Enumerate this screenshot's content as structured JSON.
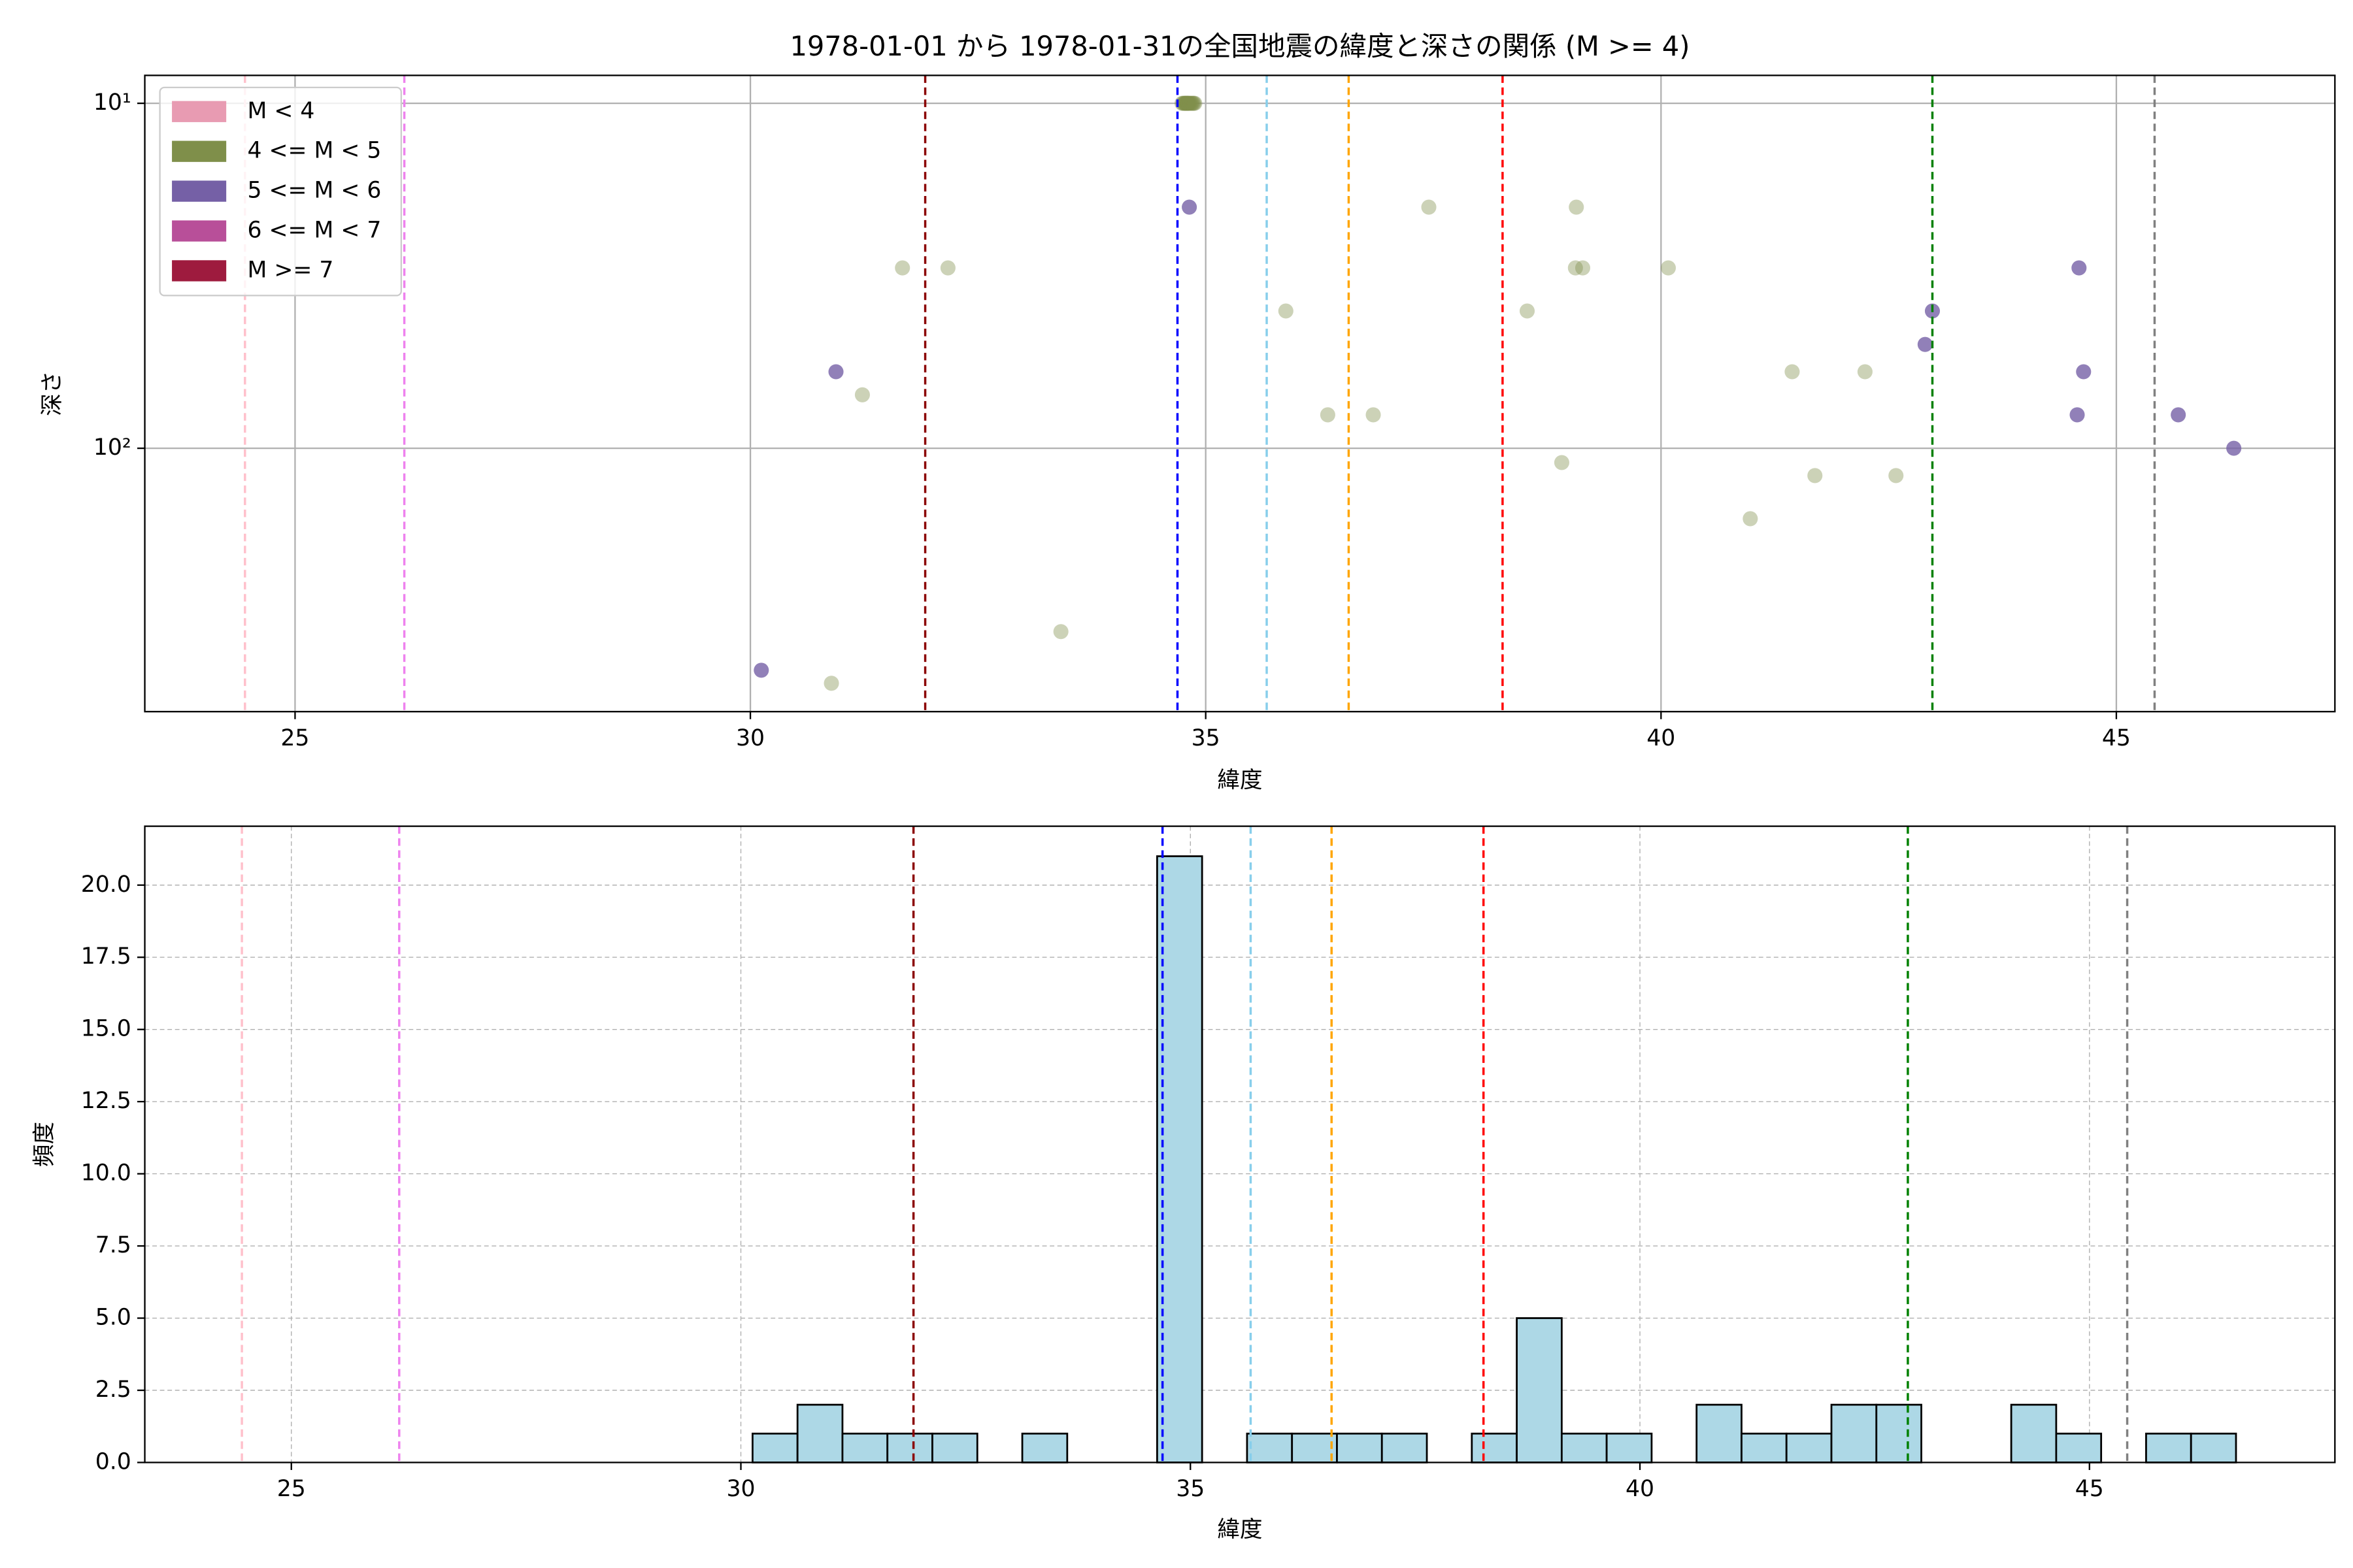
{
  "chart_data": [
    {
      "type": "scatter",
      "title": "1978-01-01 から 1978-01-31の全国地震の緯度と深さの関係 (M >= 4)",
      "xlabel": "緯度",
      "ylabel": "深さ",
      "xlim": [
        23.35,
        47.4
      ],
      "xticks": [
        25,
        30,
        35,
        40,
        45
      ],
      "ylim": [
        580,
        8.3
      ],
      "yscale": "log",
      "yticks": [
        {
          "value": 10,
          "label": "10¹"
        },
        {
          "value": 100,
          "label": "10²"
        }
      ],
      "grid": true,
      "grid_style": "solid",
      "legend": "upper left",
      "vlines": [
        {
          "value": 24.45,
          "color": "pink"
        },
        {
          "value": 26.2,
          "color": "violet"
        },
        {
          "value": 31.92,
          "color": "darkred"
        },
        {
          "value": 34.69,
          "color": "blue"
        },
        {
          "value": 35.67,
          "color": "skyblue"
        },
        {
          "value": 36.57,
          "color": "orange"
        },
        {
          "value": 38.26,
          "color": "red"
        },
        {
          "value": 42.98,
          "color": "green"
        },
        {
          "value": 45.42,
          "color": "gray"
        }
      ],
      "series": [
        {
          "name": "M < 4",
          "color": "#e89bb2",
          "x": [],
          "y": []
        },
        {
          "name": "4 <= M < 5",
          "color": "#7f8f4a",
          "x": [
            31.67,
            32.17,
            31.23,
            30.89,
            33.41,
            35.88,
            36.34,
            36.84,
            37.45,
            38.53,
            38.91,
            39.07,
            39.06,
            39.14,
            40.08,
            40.98,
            41.44,
            41.69,
            42.24,
            42.58,
            34.74,
            34.75,
            34.76,
            34.77,
            34.77,
            34.78,
            34.78,
            34.79,
            34.79,
            34.8,
            34.8,
            34.81,
            34.81,
            34.82,
            34.83,
            34.84,
            34.85,
            34.86,
            34.87,
            34.88
          ],
          "y": [
            30,
            30,
            70,
            480,
            340,
            40,
            80,
            80,
            20,
            40,
            110,
            20,
            30,
            30,
            30,
            160,
            60,
            120,
            60,
            120,
            10,
            10,
            10,
            10,
            10,
            10,
            10,
            10,
            10,
            10,
            10,
            10,
            10,
            10,
            10,
            10,
            10,
            10,
            10,
            10
          ]
        },
        {
          "name": "5 <= M < 6",
          "color": "#7560a6",
          "x": [
            30.12,
            30.94,
            34.82,
            44.59,
            44.64,
            44.57,
            42.98,
            42.9,
            45.68,
            46.29
          ],
          "y": [
            440,
            60,
            20,
            30,
            60,
            80,
            40,
            50,
            80,
            100
          ]
        },
        {
          "name": "6 <= M < 7",
          "color": "#b84f99",
          "x": [],
          "y": []
        },
        {
          "name": "M >= 7",
          "color": "#9e1b3e",
          "x": [],
          "y": []
        }
      ]
    },
    {
      "type": "histogram",
      "xlabel": "緯度",
      "ylabel": "頻度",
      "xlim": [
        23.37,
        47.73
      ],
      "xticks": [
        25,
        30,
        35,
        40,
        45
      ],
      "ylim": [
        0,
        22.04
      ],
      "yticks": [
        {
          "value": 0,
          "label": "0.0"
        },
        2.5,
        {
          "value": 5,
          "label": "5.0"
        },
        7.5,
        {
          "value": 10,
          "label": "10.0"
        },
        12.5,
        {
          "value": 15,
          "label": "15.0"
        },
        17.5,
        {
          "value": 20,
          "label": "20.0"
        }
      ],
      "grid": true,
      "grid_style": "dashed",
      "color": "lightblue",
      "edgecolor": "black",
      "bins": [
        30.13,
        30.63,
        31.13,
        31.63,
        32.13,
        32.63,
        33.13,
        33.63,
        34.13,
        34.63,
        35.13,
        35.63,
        36.13,
        36.63,
        37.13,
        37.63,
        38.13,
        38.63,
        39.13,
        39.63,
        40.13,
        40.63,
        41.13,
        41.63,
        42.13,
        42.63,
        43.13,
        43.63,
        44.13,
        44.63,
        45.13,
        45.63,
        46.13,
        46.63
      ],
      "counts": [
        1,
        2,
        1,
        1,
        1,
        0,
        1,
        0,
        0,
        21,
        0,
        1,
        1,
        1,
        1,
        0,
        1,
        5,
        1,
        1,
        0,
        2,
        1,
        1,
        2,
        2,
        0,
        0,
        2,
        1,
        0,
        1,
        1
      ],
      "vlines": [
        {
          "value": 24.45,
          "color": "pink"
        },
        {
          "value": 26.2,
          "color": "violet"
        },
        {
          "value": 31.92,
          "color": "darkred"
        },
        {
          "value": 34.69,
          "color": "blue"
        },
        {
          "value": 35.67,
          "color": "skyblue"
        },
        {
          "value": 36.57,
          "color": "orange"
        },
        {
          "value": 38.26,
          "color": "red"
        },
        {
          "value": 42.98,
          "color": "green"
        },
        {
          "value": 45.42,
          "color": "gray"
        }
      ]
    }
  ]
}
